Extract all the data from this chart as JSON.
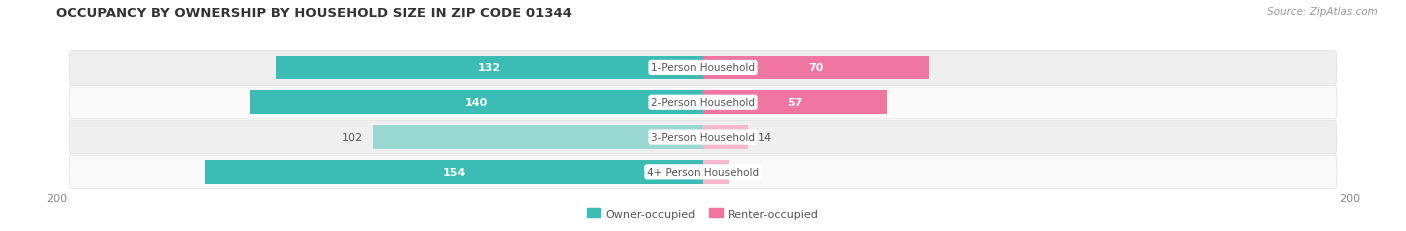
{
  "title": "OCCUPANCY BY OWNERSHIP BY HOUSEHOLD SIZE IN ZIP CODE 01344",
  "source": "Source: ZipAtlas.com",
  "categories": [
    "1-Person Household",
    "2-Person Household",
    "3-Person Household",
    "4+ Person Household"
  ],
  "owner_values": [
    132,
    140,
    102,
    154
  ],
  "renter_values": [
    70,
    57,
    14,
    8
  ],
  "owner_color_dark": "#3BBCB4",
  "owner_color_light": "#9AD8D4",
  "renter_color_dark": "#F075A0",
  "renter_color_light": "#F7B8CE",
  "row_bg_odd": "#EFEFEF",
  "row_bg_even": "#F9F9F9",
  "label_bg_color": "#FFFFFF",
  "xlim": 200,
  "legend_owner": "Owner-occupied",
  "legend_renter": "Renter-occupied",
  "title_fontsize": 9.5,
  "source_fontsize": 7.5,
  "axis_fontsize": 8,
  "bar_label_fontsize": 8,
  "cat_label_fontsize": 7.5,
  "owner_dark_threshold": 120,
  "renter_dark_threshold": 40,
  "bar_height": 0.68
}
